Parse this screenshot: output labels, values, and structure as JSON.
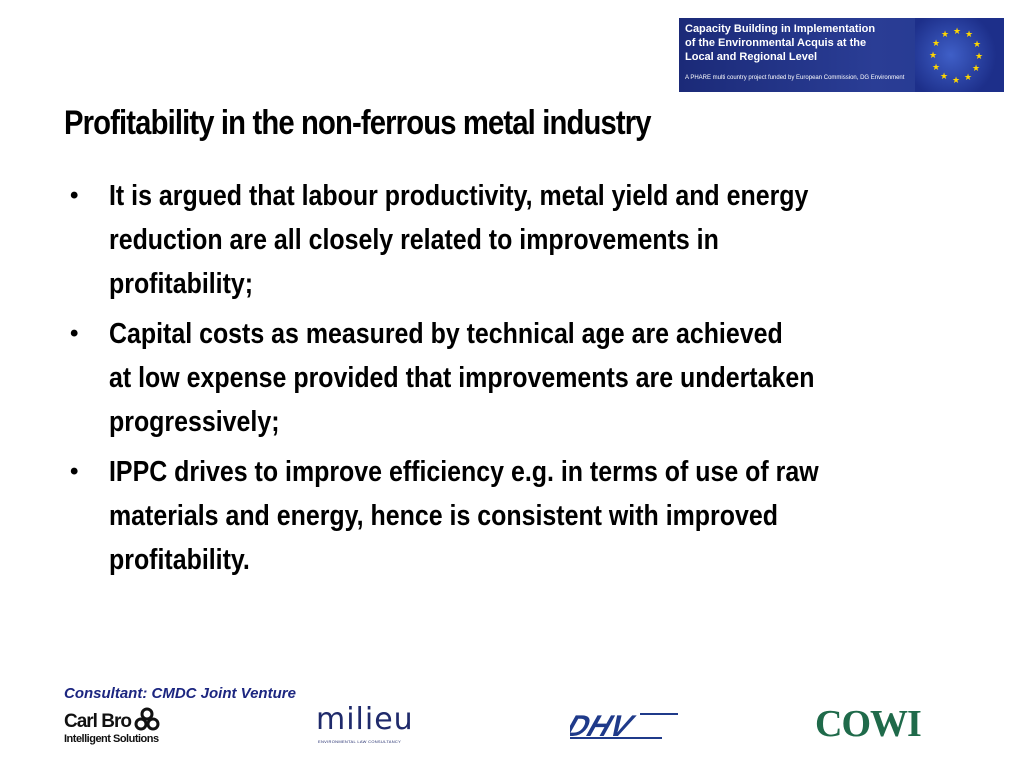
{
  "banner": {
    "line1": "Capacity Building in Implementation",
    "line2": "of the Environmental Acquis at the",
    "line3": "Local and Regional Level",
    "subtext": "A PHARE multi country project funded by European Commission, DG Environment"
  },
  "slide": {
    "title": "Profitability in the non-ferrous metal industry",
    "bullet_marker": "•",
    "bullets": [
      {
        "lines": [
          "It is argued that labour productivity, metal yield and energy",
          "reduction are all closely related to improvements in",
          "profitability;"
        ]
      },
      {
        "lines": [
          "Capital costs as measured by technical age are achieved",
          "at low expense provided that improvements are undertaken",
          "progressively;"
        ]
      },
      {
        "lines": [
          "IPPC drives to improve efficiency e.g. in terms of use of raw",
          "materials and energy, hence is consistent with improved",
          "profitability."
        ]
      }
    ]
  },
  "footer": {
    "consultant": "Consultant: CMDC Joint Venture",
    "logos": {
      "carlbro_name": "Carl Bro",
      "carlbro_tagline": "Intelligent Solutions",
      "milieu_name": "milieu",
      "milieu_tagline": "ENVIRONMENTAL LAW CONSULTANCY",
      "dhv_name": "DHV",
      "cowi_name": "COWI"
    }
  },
  "colors": {
    "banner_bg": "#24388f",
    "consultant_text": "#1c2680",
    "cowi_green": "#1f6a4a",
    "eu_star": "#ffd700"
  }
}
